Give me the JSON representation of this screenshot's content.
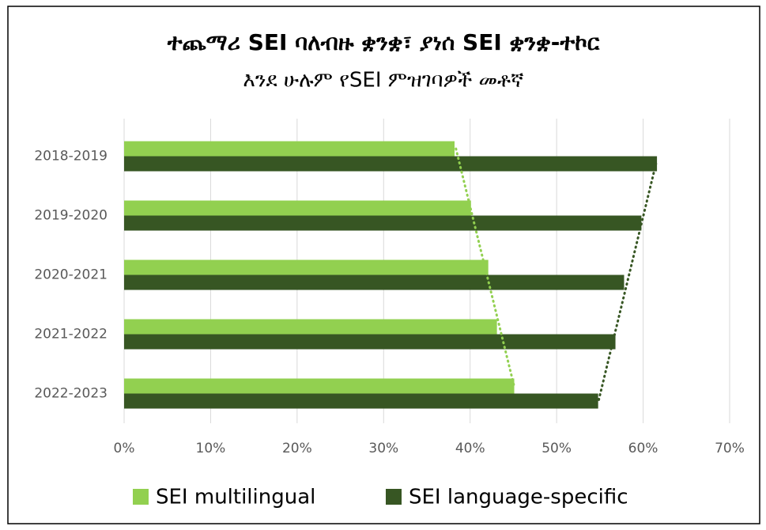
{
  "chart_data": {
    "type": "barh",
    "title": "ተጨማሪ SEI ባለብዙ ቋንቋ፣ ያነሰ SEI ቋንቋ-ተኮር",
    "subtitle": "እንደ ሁሉም የSEI ምዝገባዎች መቶኛ",
    "categories": [
      "2018-2019",
      "2019-2020",
      "2020-2021",
      "2021-2022",
      "2022-2023"
    ],
    "series": [
      {
        "name": "SEI multilingual",
        "color": "#92d050",
        "values": [
          38.2,
          40.1,
          42.1,
          43.1,
          45.1
        ]
      },
      {
        "name": "SEI language-specific",
        "color": "#375623",
        "values": [
          61.6,
          59.8,
          57.8,
          56.8,
          54.8
        ]
      }
    ],
    "xlim": [
      0,
      70
    ],
    "xticks": [
      {
        "value": 0,
        "label": "0%"
      },
      {
        "value": 10,
        "label": "10%"
      },
      {
        "value": 20,
        "label": "20%"
      },
      {
        "value": 30,
        "label": "30%"
      },
      {
        "value": 40,
        "label": "40%"
      },
      {
        "value": 50,
        "label": "50%"
      },
      {
        "value": 60,
        "label": "60%"
      },
      {
        "value": 70,
        "label": "70%"
      }
    ],
    "grid": true,
    "trendline": true,
    "legend": "bottom"
  }
}
